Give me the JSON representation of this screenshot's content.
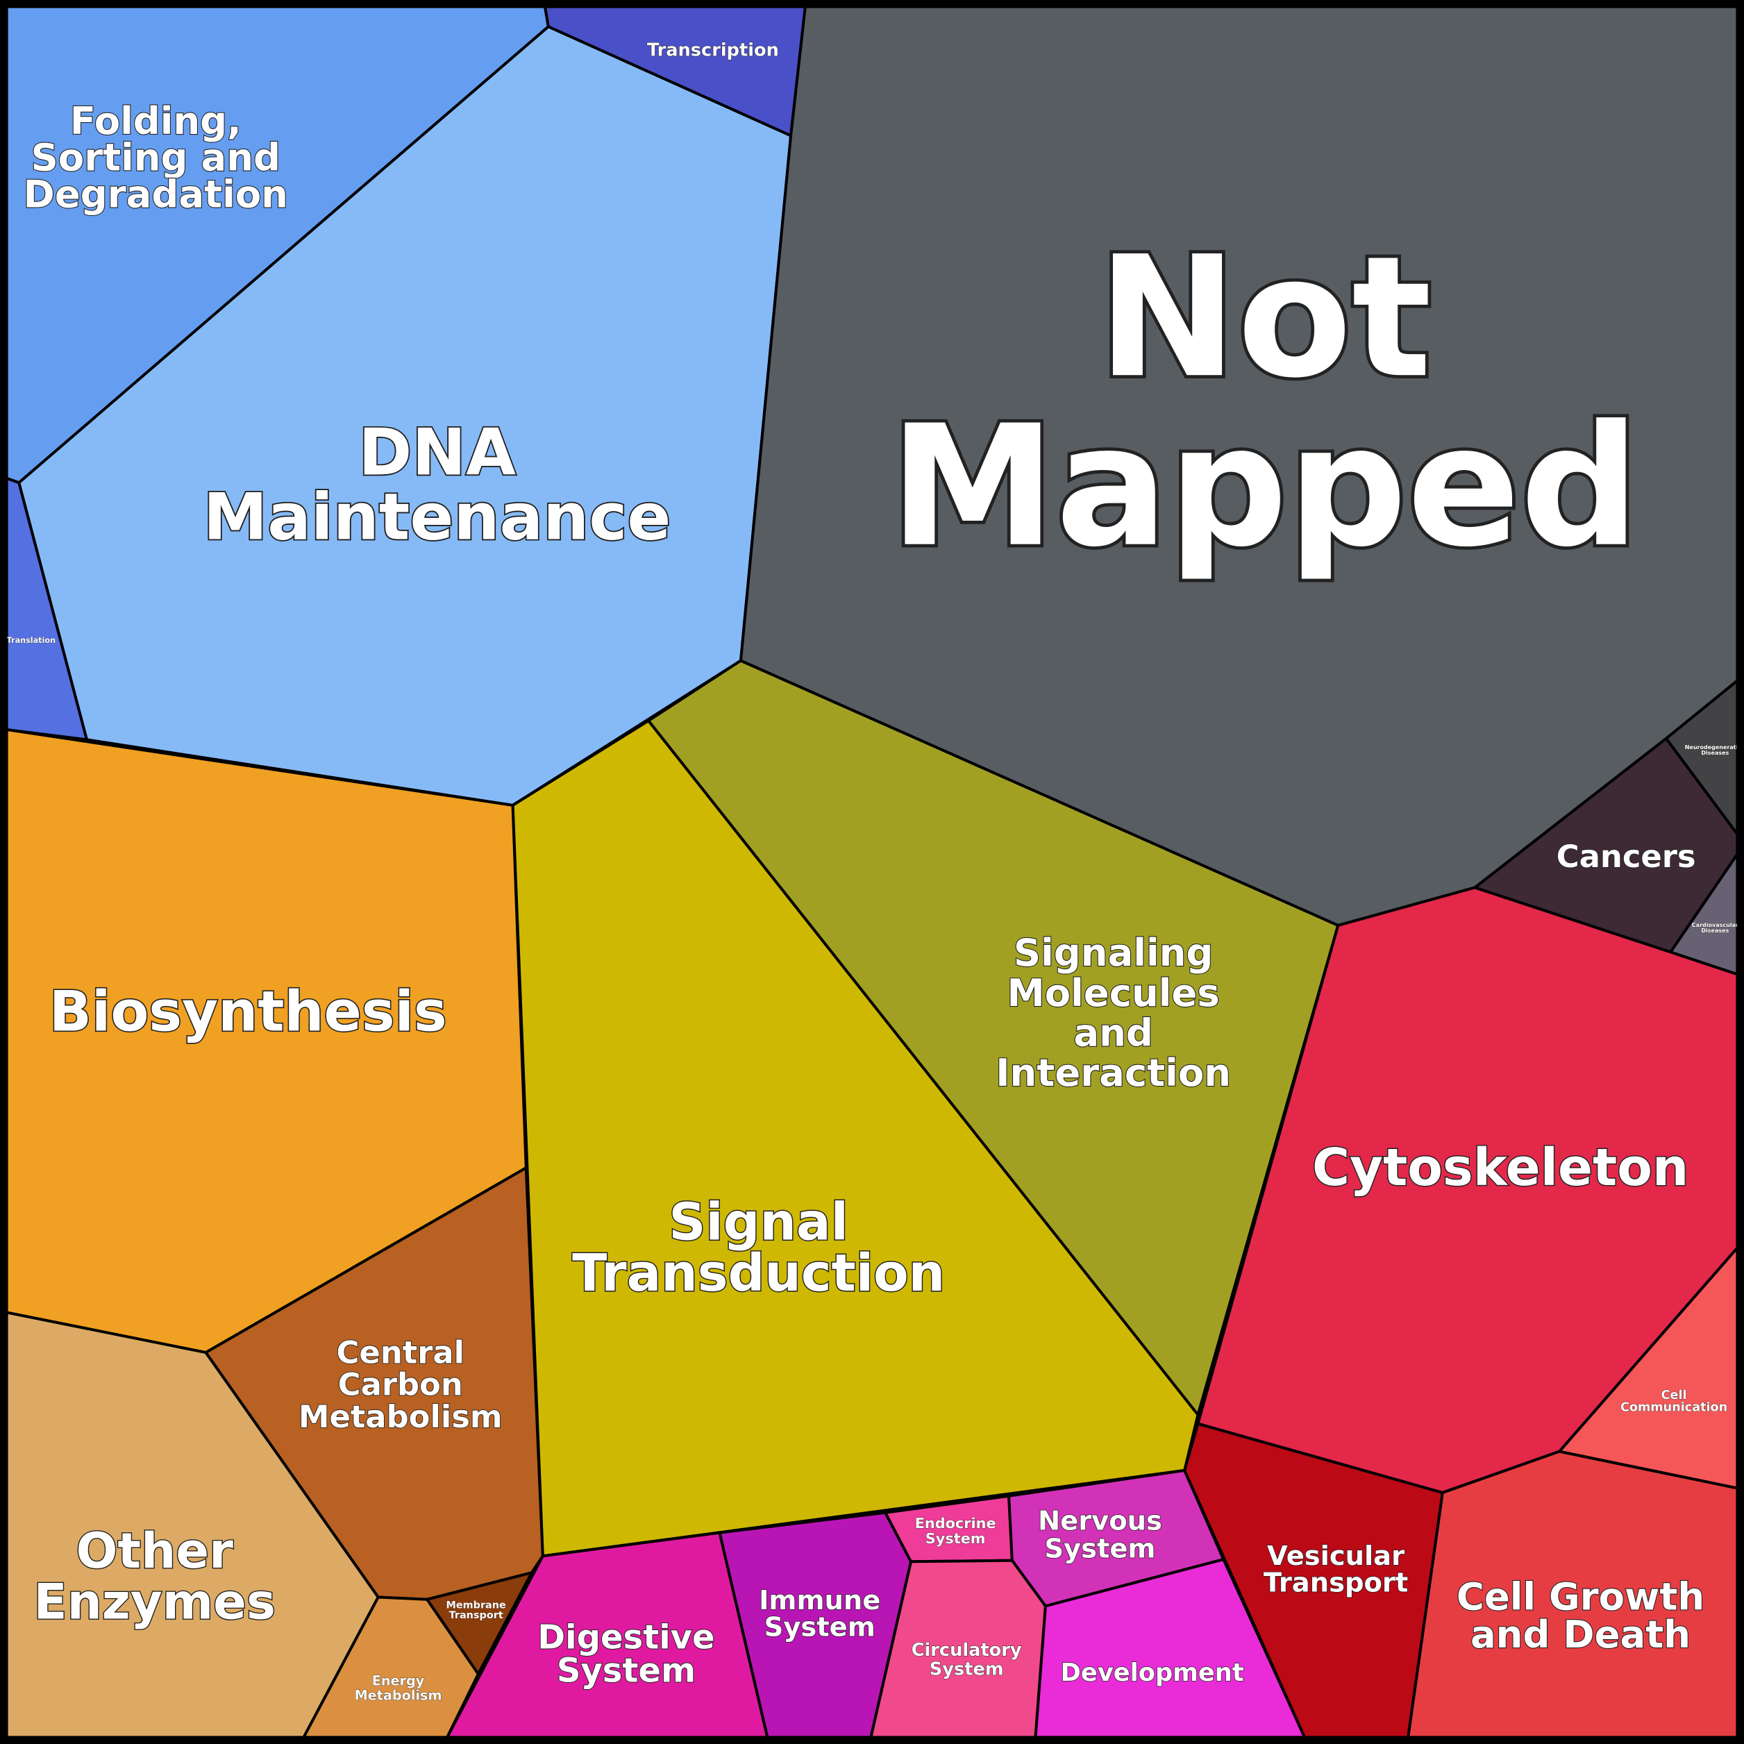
{
  "cells": [
    {
      "lines": [
        "Folding,",
        "Sorting and",
        "Degradation"
      ],
      "color": "#659ef0"
    },
    {
      "lines": [
        "Transcription"
      ],
      "color": "#4a50c8"
    },
    {
      "lines": [
        "DNA",
        "Maintenance"
      ],
      "color": "#86baf7"
    },
    {
      "lines": [
        "Translation"
      ],
      "color": "#5570e0"
    },
    {
      "lines": [
        "Not",
        "Mapped"
      ],
      "color": "#585d62"
    },
    {
      "lines": [
        "Neurodegenerative",
        "Diseases"
      ],
      "color": "#434346"
    },
    {
      "lines": [
        "Cancers"
      ],
      "color": "#3d2a35"
    },
    {
      "lines": [
        "Cardiovascular",
        "Diseases"
      ],
      "color": "#676173"
    },
    {
      "lines": [
        "Signaling",
        "Molecules",
        "and",
        "Interaction"
      ],
      "color": "#a2a023"
    },
    {
      "lines": [
        "Signal",
        "Transduction"
      ],
      "color": "#cfb802"
    },
    {
      "lines": [
        "Biosynthesis"
      ],
      "color": "#f0a022"
    },
    {
      "lines": [
        "Central",
        "Carbon",
        "Metabolism"
      ],
      "color": "#b86122"
    },
    {
      "lines": [
        "Other",
        "Enzymes"
      ],
      "color": "#dcaa64"
    },
    {
      "lines": [
        "Energy",
        "Metabolism"
      ],
      "color": "#da9040"
    },
    {
      "lines": [
        "Membrane",
        "Transport"
      ],
      "color": "#8a3c0a"
    },
    {
      "lines": [
        "Digestive",
        "System"
      ],
      "color": "#e01aa0"
    },
    {
      "lines": [
        "Immune",
        "System"
      ],
      "color": "#b915b5"
    },
    {
      "lines": [
        "Endocrine",
        "System"
      ],
      "color": "#ee3c98"
    },
    {
      "lines": [
        "Nervous",
        "System"
      ],
      "color": "#d232b8"
    },
    {
      "lines": [
        "Circulatory",
        "System"
      ],
      "color": "#f04a8c"
    },
    {
      "lines": [
        "Development"
      ],
      "color": "#e92bd8"
    },
    {
      "lines": [
        "Vesicular",
        "Transport"
      ],
      "color": "#bb0916"
    },
    {
      "lines": [
        "Cytoskeleton"
      ],
      "color": "#e3284a"
    },
    {
      "lines": [
        "Cell",
        "Communication"
      ],
      "color": "#f55658"
    },
    {
      "lines": [
        "Cell Growth",
        "and Death"
      ],
      "color": "#e63d43"
    }
  ]
}
